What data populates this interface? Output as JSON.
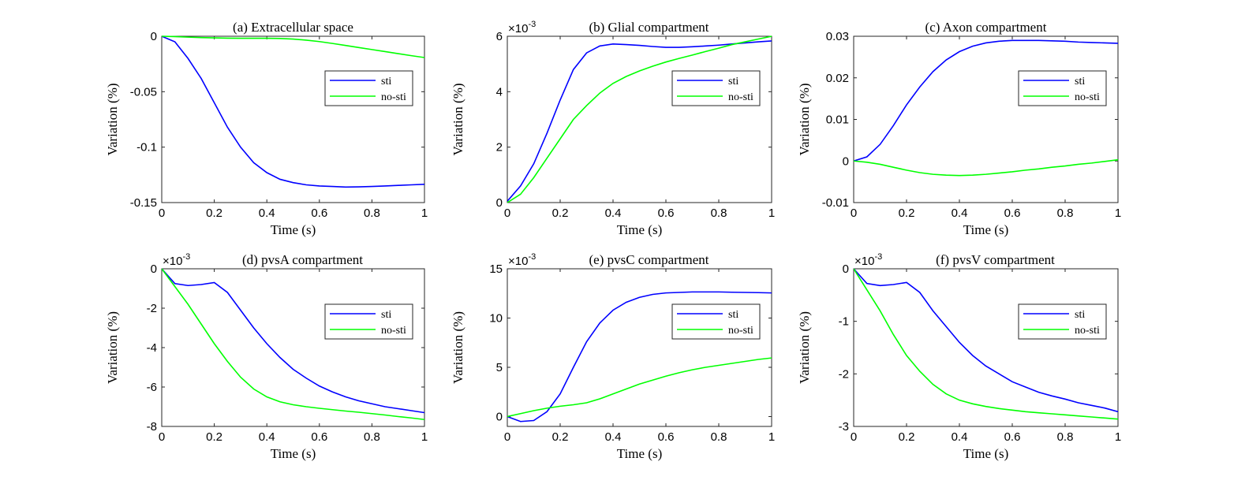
{
  "figure": {
    "legend_labels": [
      "sti",
      "no-sti"
    ],
    "series_colors": {
      "sti": "#0000ff",
      "no-sti": "#00ff00"
    }
  },
  "chart_data": [
    {
      "type": "line",
      "title": "(a) Extracellular space",
      "xlabel": "Time (s)",
      "ylabel": "Variation (%)",
      "xlim": [
        0,
        1
      ],
      "ylim": [
        -0.15,
        0
      ],
      "xticks": [
        0,
        0.2,
        0.4,
        0.6,
        0.8,
        1
      ],
      "xtick_labels": [
        "0",
        "0.2",
        "0.4",
        "0.6",
        "0.8",
        "1"
      ],
      "yticks": [
        -0.15,
        -0.1,
        -0.05,
        0
      ],
      "ytick_labels": [
        "-0.15",
        "-0.1",
        "-0.05",
        "0"
      ],
      "multiplier": null,
      "legend": "right",
      "x": [
        0,
        0.05,
        0.1,
        0.15,
        0.2,
        0.25,
        0.3,
        0.35,
        0.4,
        0.45,
        0.5,
        0.55,
        0.6,
        0.65,
        0.7,
        0.75,
        0.8,
        0.85,
        0.9,
        0.95,
        1
      ],
      "series": [
        {
          "name": "sti",
          "values": [
            0,
            -0.005,
            -0.02,
            -0.038,
            -0.06,
            -0.082,
            -0.1,
            -0.114,
            -0.123,
            -0.129,
            -0.132,
            -0.134,
            -0.135,
            -0.1355,
            -0.136,
            -0.1358,
            -0.1355,
            -0.135,
            -0.1345,
            -0.134,
            -0.1335
          ]
        },
        {
          "name": "no-sti",
          "values": [
            0,
            -0.0003,
            -0.0008,
            -0.0012,
            -0.0015,
            -0.0017,
            -0.0018,
            -0.0018,
            -0.0018,
            -0.002,
            -0.0025,
            -0.0035,
            -0.0048,
            -0.0065,
            -0.0083,
            -0.0102,
            -0.012,
            -0.0138,
            -0.0157,
            -0.0175,
            -0.0192
          ]
        }
      ]
    },
    {
      "type": "line",
      "title": "(b) Glial compartment",
      "xlabel": "Time (s)",
      "ylabel": "Variation (%)",
      "xlim": [
        0,
        1
      ],
      "ylim": [
        0,
        6
      ],
      "xticks": [
        0,
        0.2,
        0.4,
        0.6,
        0.8,
        1
      ],
      "xtick_labels": [
        "0",
        "0.2",
        "0.4",
        "0.6",
        "0.8",
        "1"
      ],
      "yticks": [
        0,
        2,
        4,
        6
      ],
      "ytick_labels": [
        "0",
        "2",
        "4",
        "6"
      ],
      "multiplier": {
        "base": "×10",
        "exponent": "-3"
      },
      "legend": "right",
      "x": [
        0,
        0.05,
        0.1,
        0.15,
        0.2,
        0.25,
        0.3,
        0.35,
        0.4,
        0.45,
        0.5,
        0.55,
        0.6,
        0.65,
        0.7,
        0.75,
        0.8,
        0.85,
        0.9,
        0.95,
        1
      ],
      "series": [
        {
          "name": "sti",
          "values": [
            0.05,
            0.6,
            1.4,
            2.5,
            3.7,
            4.8,
            5.4,
            5.65,
            5.72,
            5.7,
            5.67,
            5.63,
            5.6,
            5.6,
            5.62,
            5.65,
            5.68,
            5.72,
            5.76,
            5.8,
            5.83
          ]
        },
        {
          "name": "no-sti",
          "values": [
            0,
            0.3,
            0.9,
            1.6,
            2.3,
            3.0,
            3.5,
            3.95,
            4.3,
            4.55,
            4.75,
            4.92,
            5.07,
            5.2,
            5.32,
            5.45,
            5.57,
            5.7,
            5.8,
            5.9,
            6.0
          ]
        }
      ]
    },
    {
      "type": "line",
      "title": "(c) Axon compartment",
      "xlabel": "Time (s)",
      "ylabel": "Variation (%)",
      "xlim": [
        0,
        1
      ],
      "ylim": [
        -0.01,
        0.03
      ],
      "xticks": [
        0,
        0.2,
        0.4,
        0.6,
        0.8,
        1
      ],
      "xtick_labels": [
        "0",
        "0.2",
        "0.4",
        "0.6",
        "0.8",
        "1"
      ],
      "yticks": [
        -0.01,
        0,
        0.01,
        0.02,
        0.03
      ],
      "ytick_labels": [
        "-0.01",
        "0",
        "0.01",
        "0.02",
        "0.03"
      ],
      "multiplier": null,
      "legend": "right",
      "x": [
        0,
        0.05,
        0.1,
        0.15,
        0.2,
        0.25,
        0.3,
        0.35,
        0.4,
        0.45,
        0.5,
        0.55,
        0.6,
        0.65,
        0.7,
        0.75,
        0.8,
        0.85,
        0.9,
        0.95,
        1
      ],
      "series": [
        {
          "name": "sti",
          "values": [
            0,
            0.001,
            0.004,
            0.0085,
            0.0135,
            0.0178,
            0.0215,
            0.0243,
            0.0263,
            0.0276,
            0.0284,
            0.0288,
            0.029,
            0.029,
            0.029,
            0.0289,
            0.0288,
            0.0286,
            0.0285,
            0.0284,
            0.0283
          ]
        },
        {
          "name": "no-sti",
          "values": [
            0,
            -0.0003,
            -0.0008,
            -0.0015,
            -0.0022,
            -0.0028,
            -0.0032,
            -0.0034,
            -0.0035,
            -0.0034,
            -0.0032,
            -0.0029,
            -0.0026,
            -0.0022,
            -0.0019,
            -0.0015,
            -0.0012,
            -0.0008,
            -0.0005,
            -0.0001,
            0.0003
          ]
        }
      ]
    },
    {
      "type": "line",
      "title": "(d) pvsA compartment",
      "xlabel": "Time (s)",
      "ylabel": "Variation (%)",
      "xlim": [
        0,
        1
      ],
      "ylim": [
        -8,
        0
      ],
      "xticks": [
        0,
        0.2,
        0.4,
        0.6,
        0.8,
        1
      ],
      "xtick_labels": [
        "0",
        "0.2",
        "0.4",
        "0.6",
        "0.8",
        "1"
      ],
      "yticks": [
        -8,
        -6,
        -4,
        -2,
        0
      ],
      "ytick_labels": [
        "-8",
        "-6",
        "-4",
        "-2",
        "0"
      ],
      "multiplier": {
        "base": "×10",
        "exponent": "-3"
      },
      "legend": "right",
      "x": [
        0,
        0.05,
        0.1,
        0.15,
        0.2,
        0.25,
        0.3,
        0.35,
        0.4,
        0.45,
        0.5,
        0.55,
        0.6,
        0.65,
        0.7,
        0.75,
        0.8,
        0.85,
        0.9,
        0.95,
        1
      ],
      "series": [
        {
          "name": "sti",
          "values": [
            0,
            -0.75,
            -0.85,
            -0.8,
            -0.7,
            -1.2,
            -2.1,
            -3.0,
            -3.8,
            -4.5,
            -5.1,
            -5.55,
            -5.95,
            -6.25,
            -6.5,
            -6.7,
            -6.85,
            -7.0,
            -7.1,
            -7.2,
            -7.3
          ]
        },
        {
          "name": "no-sti",
          "values": [
            0,
            -0.9,
            -1.8,
            -2.8,
            -3.8,
            -4.7,
            -5.5,
            -6.1,
            -6.5,
            -6.75,
            -6.9,
            -7.0,
            -7.08,
            -7.15,
            -7.22,
            -7.28,
            -7.35,
            -7.42,
            -7.5,
            -7.57,
            -7.65
          ]
        }
      ]
    },
    {
      "type": "line",
      "title": "(e) pvsC compartment",
      "xlabel": "Time (s)",
      "ylabel": "Variation (%)",
      "xlim": [
        0,
        1
      ],
      "ylim": [
        -1,
        15
      ],
      "xticks": [
        0,
        0.2,
        0.4,
        0.6,
        0.8,
        1
      ],
      "xtick_labels": [
        "0",
        "0.2",
        "0.4",
        "0.6",
        "0.8",
        "1"
      ],
      "yticks": [
        0,
        5,
        10,
        15
      ],
      "ytick_labels": [
        "0",
        "5",
        "10",
        "15"
      ],
      "multiplier": {
        "base": "×10",
        "exponent": "-3"
      },
      "legend": "right",
      "x": [
        0,
        0.05,
        0.1,
        0.15,
        0.2,
        0.25,
        0.3,
        0.35,
        0.4,
        0.45,
        0.5,
        0.55,
        0.6,
        0.65,
        0.7,
        0.75,
        0.8,
        0.85,
        0.9,
        0.95,
        1
      ],
      "series": [
        {
          "name": "sti",
          "values": [
            0,
            -0.5,
            -0.4,
            0.5,
            2.3,
            5.0,
            7.6,
            9.5,
            10.8,
            11.6,
            12.1,
            12.4,
            12.55,
            12.6,
            12.65,
            12.65,
            12.65,
            12.62,
            12.6,
            12.58,
            12.55
          ]
        },
        {
          "name": "no-sti",
          "values": [
            0,
            0.3,
            0.6,
            0.85,
            1.05,
            1.2,
            1.4,
            1.8,
            2.3,
            2.8,
            3.3,
            3.7,
            4.1,
            4.45,
            4.75,
            5.0,
            5.2,
            5.4,
            5.6,
            5.8,
            5.95
          ]
        }
      ]
    },
    {
      "type": "line",
      "title": "(f) pvsV compartment",
      "xlabel": "Time (s)",
      "ylabel": "Variation (%)",
      "xlim": [
        0,
        1
      ],
      "ylim": [
        -3,
        0
      ],
      "xticks": [
        0,
        0.2,
        0.4,
        0.6,
        0.8,
        1
      ],
      "xtick_labels": [
        "0",
        "0.2",
        "0.4",
        "0.6",
        "0.8",
        "1"
      ],
      "yticks": [
        -3,
        -2,
        -1,
        0
      ],
      "ytick_labels": [
        "-3",
        "-2",
        "-1",
        "0"
      ],
      "multiplier": {
        "base": "×10",
        "exponent": "-3"
      },
      "legend": "right",
      "x": [
        0,
        0.05,
        0.1,
        0.15,
        0.2,
        0.25,
        0.3,
        0.35,
        0.4,
        0.45,
        0.5,
        0.55,
        0.6,
        0.65,
        0.7,
        0.75,
        0.8,
        0.85,
        0.9,
        0.95,
        1
      ],
      "series": [
        {
          "name": "sti",
          "values": [
            0,
            -0.28,
            -0.32,
            -0.3,
            -0.26,
            -0.45,
            -0.8,
            -1.1,
            -1.4,
            -1.65,
            -1.85,
            -2.0,
            -2.15,
            -2.25,
            -2.35,
            -2.42,
            -2.48,
            -2.55,
            -2.6,
            -2.65,
            -2.72
          ]
        },
        {
          "name": "no-sti",
          "values": [
            0,
            -0.4,
            -0.8,
            -1.25,
            -1.65,
            -1.95,
            -2.2,
            -2.38,
            -2.5,
            -2.57,
            -2.62,
            -2.66,
            -2.69,
            -2.72,
            -2.74,
            -2.76,
            -2.78,
            -2.8,
            -2.82,
            -2.84,
            -2.86
          ]
        }
      ]
    }
  ]
}
